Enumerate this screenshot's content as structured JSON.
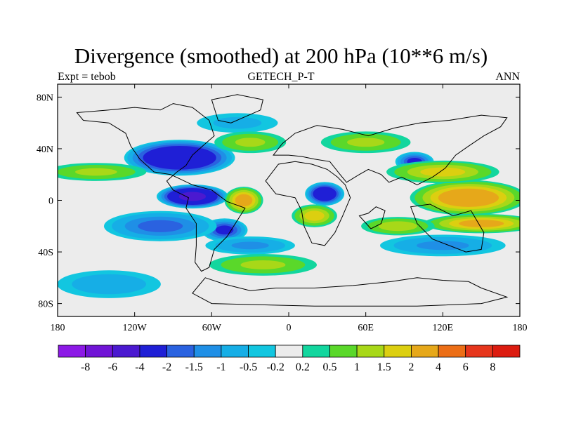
{
  "chart_data": {
    "type": "heatmap",
    "title": "Divergence (smoothed) at 200 hPa (10**6 m/s)",
    "subtitle_left": "Expt = tebob",
    "subtitle_center": "GETECH_P-T",
    "subtitle_right": "ANN",
    "x_ticks": [
      "180",
      "120W",
      "60W",
      "0",
      "60E",
      "120E",
      "180"
    ],
    "y_ticks": [
      "80N",
      "40N",
      "0",
      "40S",
      "80S"
    ],
    "xlim": [
      -180,
      180
    ],
    "ylim": [
      -90,
      90
    ],
    "colorbar_labels": [
      "-8",
      "-6",
      "-4",
      "-2",
      "-1.5",
      "-1",
      "-0.5",
      "-0.2",
      "0.2",
      "0.5",
      "1",
      "1.5",
      "2",
      "4",
      "6",
      "8"
    ],
    "colorbar_colors": [
      "#8c19e6",
      "#7014d6",
      "#4b19d0",
      "#1f1fd6",
      "#2a62e0",
      "#1f8fe6",
      "#16aee6",
      "#12c6e0",
      "#ececec",
      "#12d69e",
      "#5ad82a",
      "#a8d818",
      "#dccf10",
      "#e6a81a",
      "#ec6e16",
      "#e6361c",
      "#dc1c10"
    ],
    "field_features": [
      {
        "lon": -85,
        "lat": 33,
        "value": -3.5,
        "rx": 28,
        "ry": 9
      },
      {
        "lon": -75,
        "lat": 3,
        "value": -4.0,
        "rx": 18,
        "ry": 6
      },
      {
        "lon": 28,
        "lat": 5,
        "value": -3.0,
        "rx": 10,
        "ry": 6
      },
      {
        "lon": 98,
        "lat": 30,
        "value": -2.0,
        "rx": 10,
        "ry": 5
      },
      {
        "lon": -50,
        "lat": -23,
        "value": -2.0,
        "rx": 12,
        "ry": 6
      },
      {
        "lon": -100,
        "lat": -20,
        "value": -1.5,
        "rx": 30,
        "ry": 8
      },
      {
        "lon": -30,
        "lat": -35,
        "value": -1.0,
        "rx": 25,
        "ry": 5
      },
      {
        "lon": 120,
        "lat": -35,
        "value": -1.0,
        "rx": 35,
        "ry": 6
      },
      {
        "lon": -140,
        "lat": -65,
        "value": -0.8,
        "rx": 30,
        "ry": 8
      },
      {
        "lon": -40,
        "lat": 60,
        "value": -0.6,
        "rx": 25,
        "ry": 6
      },
      {
        "lon": 140,
        "lat": 2,
        "value": 2.5,
        "rx": 30,
        "ry": 9
      },
      {
        "lon": 150,
        "lat": -18,
        "value": 2.0,
        "rx": 30,
        "ry": 5
      },
      {
        "lon": 120,
        "lat": 22,
        "value": 1.5,
        "rx": 30,
        "ry": 6
      },
      {
        "lon": -150,
        "lat": 22,
        "value": 1.0,
        "rx": 28,
        "ry": 5
      },
      {
        "lon": -35,
        "lat": 0,
        "value": 2.2,
        "rx": 10,
        "ry": 7
      },
      {
        "lon": 20,
        "lat": -12,
        "value": 1.6,
        "rx": 12,
        "ry": 6
      },
      {
        "lon": 85,
        "lat": -20,
        "value": 1.2,
        "rx": 20,
        "ry": 5
      },
      {
        "lon": -30,
        "lat": 45,
        "value": 1.0,
        "rx": 20,
        "ry": 6
      },
      {
        "lon": 60,
        "lat": 45,
        "value": 1.0,
        "rx": 25,
        "ry": 6
      },
      {
        "lon": -20,
        "lat": -50,
        "value": 1.0,
        "rx": 30,
        "ry": 6
      }
    ]
  }
}
